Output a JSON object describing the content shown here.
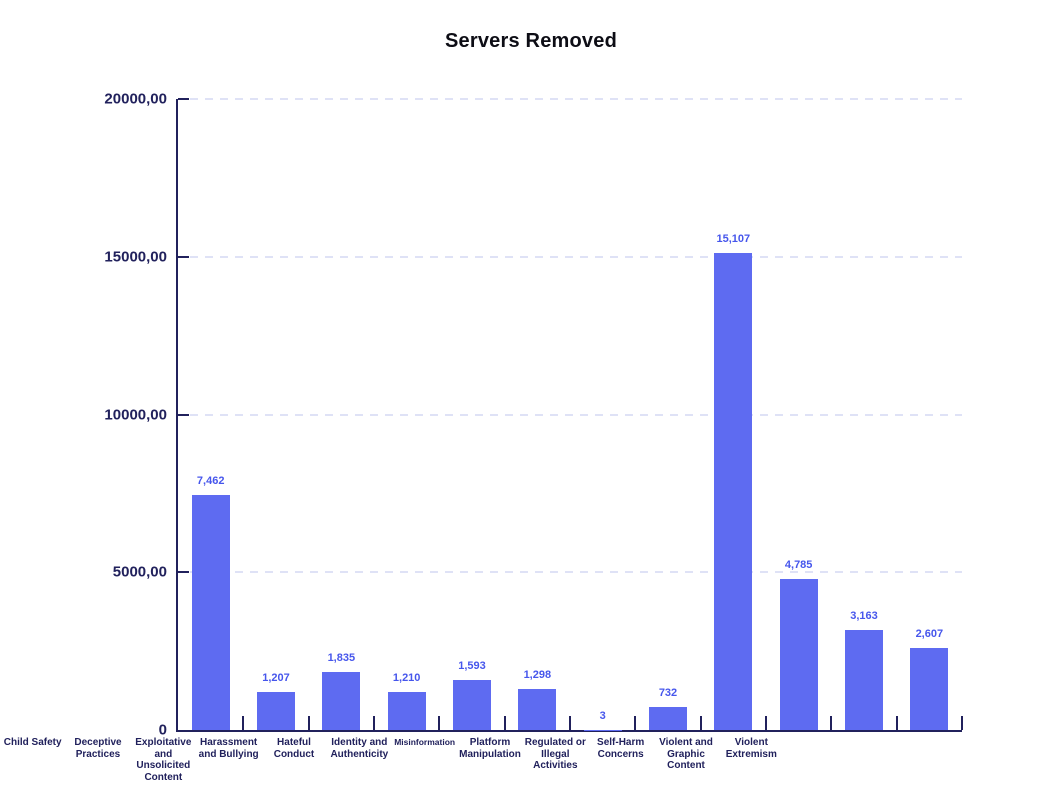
{
  "chart_data": {
    "type": "bar",
    "title": "Servers Removed",
    "categories": [
      "Child Safety",
      "Deceptive Practices",
      "Exploitative and Unsolicited Content",
      "Harassment and Bullying",
      "Hateful Conduct",
      "Identity and Authenticity",
      "Misinformation",
      "Platform Manipulation",
      "Regulated or Illegal Activities",
      "Self-Harm Concerns",
      "Violent and Graphic Content",
      "Violent Extremism"
    ],
    "values": [
      7462,
      1207,
      1835,
      1210,
      1593,
      1298,
      3,
      732,
      15107,
      4785,
      3163,
      2607
    ],
    "value_labels": [
      "7,462",
      "1,207",
      "1,835",
      "1,210",
      "1,593",
      "1,298",
      "3",
      "732",
      "15,107",
      "4,785",
      "3,163",
      "2,607"
    ],
    "xlabel": "",
    "ylabel": "",
    "ylim": [
      0,
      20000
    ],
    "y_ticks": [
      {
        "value": 0,
        "label": "0"
      },
      {
        "value": 5000,
        "label": "5000,00"
      },
      {
        "value": 10000,
        "label": "10000,00"
      },
      {
        "value": 15000,
        "label": "15000,00"
      },
      {
        "value": 20000,
        "label": "20000,00"
      }
    ],
    "grid": "horizontal-dashed",
    "legend": "none",
    "colors": {
      "bar": "#5e6bf1",
      "value_label": "#4656ec",
      "axis": "#21215c",
      "axis_text": "#21215c",
      "title": "#0d0d15",
      "gridline": "#dfe2f6",
      "background": "#ffffff"
    }
  }
}
